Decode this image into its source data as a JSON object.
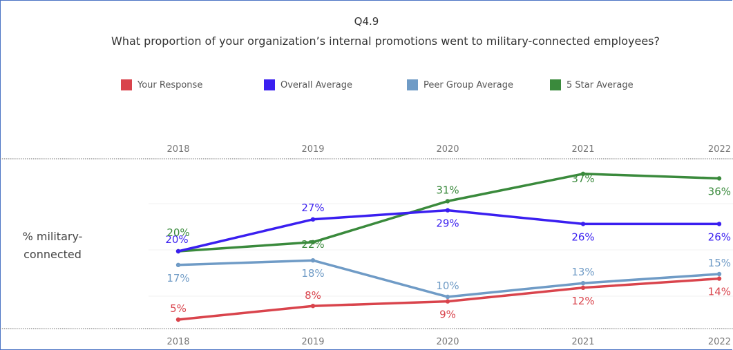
{
  "header": {
    "question_id": "Q4.9",
    "question_text": "What proportion of your organization’s internal promotions went to military-connected employees?"
  },
  "row_label_line1": "% military-",
  "row_label_line2": "connected",
  "legend": [
    {
      "label": "Your Response",
      "color": "#d9444c"
    },
    {
      "label": "Overall Average",
      "color": "#3a1ff0"
    },
    {
      "label": "Peer Group Average",
      "color": "#6f9bc6"
    },
    {
      "label": "5 Star Average",
      "color": "#3a8a3c"
    }
  ],
  "chart_data": {
    "type": "line",
    "x": [
      "2018",
      "2019",
      "2020",
      "2021",
      "2022"
    ],
    "ylabel": "% military-connected",
    "series": [
      {
        "name": "Your Response",
        "color": "#d9444c",
        "values": [
          5,
          8,
          9,
          12,
          14
        ],
        "labels": [
          "5%",
          "8%",
          "9%",
          "12%",
          "14%"
        ]
      },
      {
        "name": "Overall Average",
        "color": "#3a1ff0",
        "values": [
          20,
          27,
          29,
          26,
          26
        ],
        "labels": [
          "20%",
          "27%",
          "29%",
          "26%",
          "26%"
        ]
      },
      {
        "name": "Peer Group Average",
        "color": "#6f9bc6",
        "values": [
          17,
          18,
          10,
          13,
          15
        ],
        "labels": [
          "17%",
          "18%",
          "10%",
          "13%",
          "15%"
        ]
      },
      {
        "name": "5 Star Average",
        "color": "#3a8a3c",
        "values": [
          20,
          22,
          31,
          37,
          36
        ],
        "labels": [
          "20%",
          "22%",
          "31%",
          "37%",
          "36%"
        ]
      }
    ]
  }
}
